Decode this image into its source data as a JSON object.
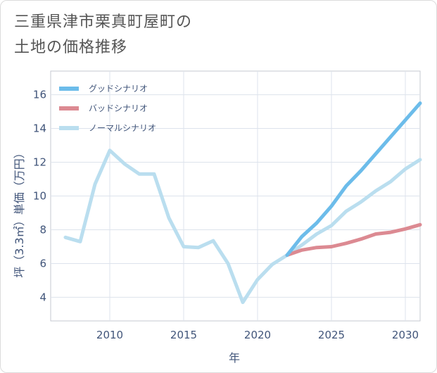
{
  "title": "三重県津市栗真町屋町の\n土地の価格推移",
  "chart_data": {
    "type": "line",
    "title": "三重県津市栗真町屋町の土地の価格推移",
    "xlabel": "年",
    "ylabel": "坪（3.3㎡）単価（万円）",
    "xlim": [
      2006,
      2031
    ],
    "ylim": [
      2.6,
      17.4
    ],
    "xticks": [
      2010,
      2015,
      2020,
      2025,
      2030
    ],
    "yticks": [
      4,
      6,
      8,
      10,
      12,
      14,
      16
    ],
    "legend_position": "top-left",
    "series": [
      {
        "name": "グッドシナリオ",
        "color": "#6cbcea",
        "x": [
          2022,
          2023,
          2024,
          2025,
          2026,
          2027,
          2028,
          2029,
          2030,
          2031
        ],
        "y": [
          6.5,
          7.6,
          8.4,
          9.4,
          10.6,
          11.5,
          12.5,
          13.5,
          14.5,
          15.5
        ]
      },
      {
        "name": "バッドシナリオ",
        "color": "#dc8a92",
        "x": [
          2022,
          2023,
          2024,
          2025,
          2026,
          2027,
          2028,
          2029,
          2030,
          2031
        ],
        "y": [
          6.5,
          6.8,
          6.95,
          7.0,
          7.2,
          7.45,
          7.75,
          7.85,
          8.05,
          8.3
        ]
      },
      {
        "name": "ノーマルシナリオ",
        "color": "#badeef",
        "x": [
          2007,
          2008,
          2009,
          2010,
          2011,
          2012,
          2013,
          2014,
          2015,
          2016,
          2017,
          2018,
          2019,
          2020,
          2021,
          2022,
          2023,
          2024,
          2025,
          2026,
          2027,
          2028,
          2029,
          2030,
          2031
        ],
        "y": [
          7.55,
          7.3,
          10.7,
          12.7,
          11.9,
          11.3,
          11.3,
          8.7,
          7.0,
          6.95,
          7.35,
          6.0,
          3.7,
          5.05,
          5.95,
          6.5,
          7.1,
          7.75,
          8.25,
          9.1,
          9.65,
          10.3,
          10.85,
          11.6,
          12.15
        ]
      }
    ]
  }
}
